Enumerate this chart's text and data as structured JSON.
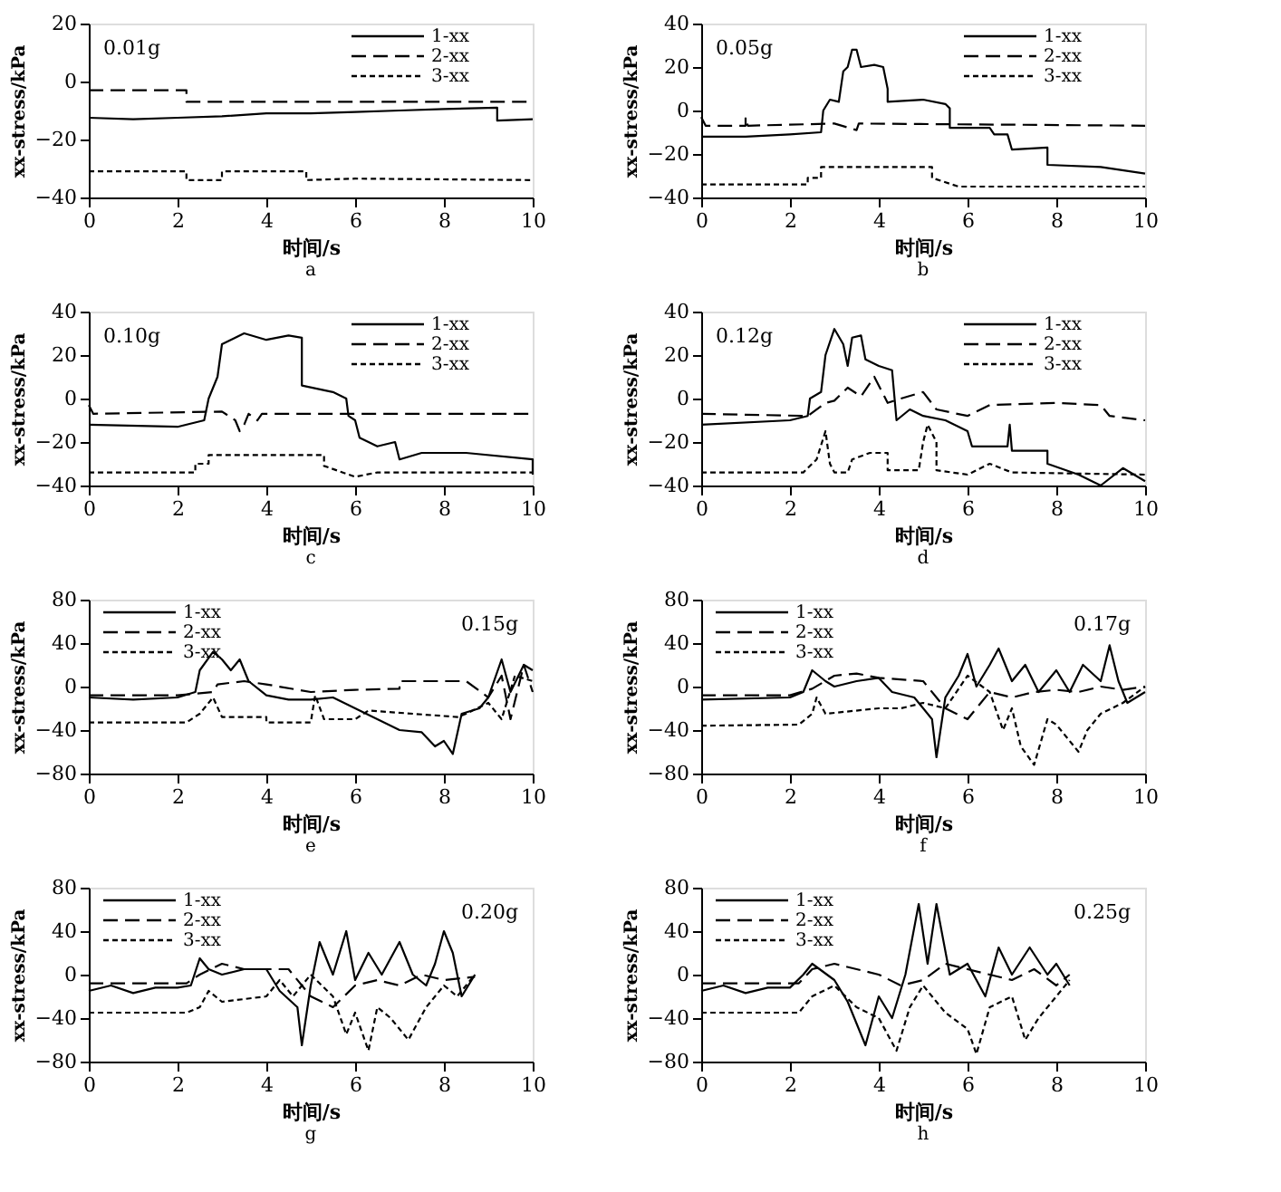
{
  "chart_data": [
    {
      "type": "line",
      "title": "a",
      "xlabel": "时间/s",
      "ylabel": "xx-stress/kPa",
      "annotations": [
        "0.01g"
      ],
      "xlim": [
        0,
        10
      ],
      "xticks": [
        0,
        2,
        4,
        6,
        8,
        10
      ],
      "ylim": [
        -40,
        20
      ],
      "yticks": [
        -40,
        -20,
        0,
        20
      ],
      "grid": false,
      "legend": "top right",
      "series": [
        {
          "name": "1-xx",
          "color": "#000000",
          "line_style": "solid",
          "x": [
            0,
            1,
            2,
            3,
            4,
            5,
            6,
            7,
            8,
            9.2,
            9.2,
            10
          ],
          "values": [
            -12.5,
            -13,
            -12.5,
            -12,
            -11,
            -11,
            -10.5,
            -10,
            -9.5,
            -9,
            -13.5,
            -13
          ]
        },
        {
          "name": "2-xx",
          "color": "#000000",
          "line_style": "dashed",
          "x": [
            0,
            2.2,
            2.2,
            10
          ],
          "values": [
            -3,
            -3,
            -7,
            -7
          ]
        },
        {
          "name": "3-xx",
          "color": "#000000",
          "line_style": "dotted",
          "x": [
            0,
            2.2,
            2.2,
            3,
            3,
            4.9,
            4.9,
            6,
            10
          ],
          "values": [
            -31,
            -31,
            -34,
            -34,
            -31,
            -31,
            -34,
            -33.5,
            -34
          ]
        }
      ]
    },
    {
      "type": "line",
      "title": "b",
      "xlabel": "时间/s",
      "ylabel": "xx-stress/kPa",
      "annotations": [
        "0.05g"
      ],
      "xlim": [
        0,
        10
      ],
      "xticks": [
        0,
        2,
        4,
        6,
        8,
        10
      ],
      "ylim": [
        -40,
        40
      ],
      "yticks": [
        -40,
        -20,
        0,
        20,
        40
      ],
      "grid": false,
      "legend": "top right",
      "series": [
        {
          "name": "1-xx",
          "color": "#000000",
          "line_style": "solid",
          "x": [
            0,
            1,
            2,
            2.7,
            2.75,
            2.9,
            3.1,
            3.2,
            3.3,
            3.4,
            3.5,
            3.6,
            3.9,
            4.1,
            4.2,
            4.2,
            5,
            5.5,
            5.6,
            5.6,
            6.5,
            6.6,
            6.9,
            7,
            7.8,
            7.8,
            9,
            10
          ],
          "values": [
            -12,
            -12,
            -11,
            -10,
            0,
            5,
            4,
            18,
            20,
            28,
            28,
            20,
            21,
            20,
            10,
            4,
            5,
            3,
            1,
            -8,
            -8,
            -11,
            -11,
            -18,
            -17,
            -25,
            -26,
            -29
          ]
        },
        {
          "name": "2-xx",
          "color": "#000000",
          "line_style": "dashed",
          "x": [
            0,
            0.1,
            1,
            1,
            1.05,
            3,
            3.5,
            3.55,
            10
          ],
          "values": [
            -3,
            -7,
            -7,
            -3,
            -7,
            -6,
            -9,
            -6,
            -7
          ]
        },
        {
          "name": "3-xx",
          "color": "#000000",
          "line_style": "dotted",
          "x": [
            0,
            2.4,
            2.4,
            2.7,
            2.7,
            5.2,
            5.2,
            5.8,
            10
          ],
          "values": [
            -34,
            -34,
            -31,
            -31,
            -26,
            -26,
            -31,
            -35,
            -35
          ]
        }
      ]
    },
    {
      "type": "line",
      "title": "c",
      "xlabel": "时间/s",
      "ylabel": "xx-stress/kPa",
      "annotations": [
        "0.10g"
      ],
      "xlim": [
        0,
        10
      ],
      "xticks": [
        0,
        2,
        4,
        6,
        8,
        10
      ],
      "ylim": [
        -40,
        40
      ],
      "yticks": [
        -40,
        -20,
        0,
        20,
        40
      ],
      "grid": false,
      "legend": "top right",
      "series": [
        {
          "name": "1-xx",
          "color": "#000000",
          "line_style": "solid",
          "x": [
            0,
            2,
            2.6,
            2.7,
            2.9,
            3,
            3.2,
            3.5,
            4,
            4.5,
            4.8,
            4.8,
            5.5,
            5.8,
            5.85,
            6,
            6.1,
            6.5,
            6.9,
            7,
            7.5,
            8.5,
            10,
            10
          ],
          "values": [
            -12,
            -13,
            -10,
            0,
            10,
            25,
            27,
            30,
            27,
            29,
            28,
            6,
            3,
            0,
            -8,
            -10,
            -18,
            -22,
            -20,
            -28,
            -25,
            -25,
            -28,
            -35
          ]
        },
        {
          "name": "2-xx",
          "color": "#000000",
          "line_style": "dashed",
          "x": [
            0,
            0.1,
            3,
            3.3,
            3.4,
            3.5,
            3.6,
            3.8,
            3.9,
            10
          ],
          "values": [
            -3,
            -7,
            -6,
            -10,
            -15,
            -12,
            -7,
            -10,
            -7,
            -7
          ]
        },
        {
          "name": "3-xx",
          "color": "#000000",
          "line_style": "dotted",
          "x": [
            0,
            2.4,
            2.4,
            2.7,
            2.7,
            5.3,
            5.3,
            6,
            6.5,
            10
          ],
          "values": [
            -34,
            -34,
            -30,
            -30,
            -26,
            -26,
            -31,
            -36,
            -34,
            -34
          ]
        }
      ]
    },
    {
      "type": "line",
      "title": "d",
      "xlabel": "时间/s",
      "ylabel": "xx-stress/kPa",
      "annotations": [
        "0.12g"
      ],
      "xlim": [
        0,
        10
      ],
      "xticks": [
        0,
        2,
        4,
        6,
        8,
        10
      ],
      "ylim": [
        -40,
        40
      ],
      "yticks": [
        -40,
        -20,
        0,
        20,
        40
      ],
      "grid": false,
      "legend": "top right",
      "series": [
        {
          "name": "1-xx",
          "color": "#000000",
          "line_style": "solid",
          "x": [
            0,
            2,
            2.4,
            2.45,
            2.7,
            2.8,
            3,
            3.2,
            3.3,
            3.4,
            3.6,
            3.7,
            4,
            4.3,
            4.4,
            4.7,
            5,
            5.5,
            6,
            6.1,
            6.5,
            6.9,
            6.95,
            7,
            7.8,
            7.8,
            8.5,
            9,
            9.5,
            10
          ],
          "values": [
            -12,
            -10,
            -8,
            0,
            3,
            20,
            32,
            25,
            15,
            28,
            29,
            18,
            15,
            13,
            -10,
            -5,
            -8,
            -10,
            -15,
            -22,
            -22,
            -22,
            -12,
            -24,
            -24,
            -30,
            -35,
            -40,
            -32,
            -38
          ]
        },
        {
          "name": "2-xx",
          "color": "#000000",
          "line_style": "dashed",
          "x": [
            0,
            2.4,
            2.8,
            3,
            3.3,
            3.6,
            3.9,
            4.2,
            4.5,
            5,
            5.3,
            6,
            6.5,
            8,
            9,
            9.2,
            10
          ],
          "values": [
            -7,
            -8,
            -2,
            -1,
            5,
            1,
            10,
            -2,
            0,
            3,
            -5,
            -8,
            -3,
            -2,
            -3,
            -8,
            -10
          ]
        },
        {
          "name": "3-xx",
          "color": "#000000",
          "line_style": "dotted",
          "x": [
            0,
            2.3,
            2.6,
            2.8,
            2.9,
            3,
            3.3,
            3.4,
            3.8,
            4.2,
            4.2,
            4.9,
            5,
            5.1,
            5.3,
            5.3,
            6,
            6.5,
            7,
            10
          ],
          "values": [
            -34,
            -34,
            -28,
            -15,
            -30,
            -34,
            -34,
            -28,
            -25,
            -25,
            -33,
            -33,
            -20,
            -12,
            -20,
            -33,
            -35,
            -30,
            -34,
            -35
          ]
        }
      ]
    },
    {
      "type": "line",
      "title": "e",
      "xlabel": "时间/s",
      "ylabel": "xx-stress/kPa",
      "annotations": [
        "0.15g"
      ],
      "xlim": [
        0,
        10
      ],
      "xticks": [
        0,
        2,
        4,
        6,
        8,
        10
      ],
      "ylim": [
        -80,
        80
      ],
      "yticks": [
        -80,
        -40,
        0,
        40,
        80
      ],
      "grid": false,
      "legend": "top left",
      "series": [
        {
          "name": "1-xx",
          "color": "#000000",
          "line_style": "solid",
          "x": [
            0,
            1,
            2,
            2.4,
            2.5,
            2.8,
            3,
            3.2,
            3.4,
            3.6,
            4,
            4.5,
            5,
            5.5,
            6,
            6.5,
            7,
            7.5,
            7.8,
            8,
            8.2,
            8.4,
            8.8,
            9,
            9.3,
            9.5,
            9.8,
            10
          ],
          "values": [
            -10,
            -12,
            -10,
            -5,
            15,
            32,
            25,
            15,
            25,
            5,
            -8,
            -12,
            -12,
            -10,
            -20,
            -30,
            -40,
            -42,
            -55,
            -50,
            -62,
            -25,
            -20,
            -10,
            25,
            -5,
            20,
            15
          ]
        },
        {
          "name": "2-xx",
          "color": "#000000",
          "line_style": "dashed",
          "x": [
            0,
            2,
            2.8,
            2.9,
            3.5,
            4,
            5,
            6,
            7,
            7,
            8,
            8.5,
            9,
            9.3,
            9.5,
            9.8,
            10
          ],
          "values": [
            -8,
            -8,
            -5,
            2,
            5,
            2,
            -5,
            -3,
            -2,
            5,
            5,
            5,
            -10,
            10,
            -30,
            20,
            -5
          ]
        },
        {
          "name": "3-xx",
          "color": "#000000",
          "line_style": "dotted",
          "x": [
            0,
            2.2,
            2.5,
            2.8,
            3,
            4,
            4,
            5,
            5.1,
            5.3,
            6,
            6.3,
            8.3,
            8.5,
            9,
            9.3,
            9.6,
            10
          ],
          "values": [
            -33,
            -33,
            -25,
            -10,
            -28,
            -28,
            -33,
            -33,
            -8,
            -30,
            -30,
            -22,
            -28,
            -25,
            -15,
            -30,
            10,
            5
          ]
        }
      ]
    },
    {
      "type": "line",
      "title": "f",
      "xlabel": "时间/s",
      "ylabel": "xx-stress/kPa",
      "annotations": [
        "0.17g"
      ],
      "xlim": [
        0,
        10
      ],
      "xticks": [
        0,
        2,
        4,
        6,
        8,
        10
      ],
      "ylim": [
        -80,
        80
      ],
      "yticks": [
        -80,
        -40,
        0,
        40,
        80
      ],
      "grid": false,
      "legend": "top left",
      "series": [
        {
          "name": "1-xx",
          "color": "#000000",
          "line_style": "solid",
          "x": [
            0,
            2,
            2.3,
            2.5,
            2.8,
            3,
            3.5,
            4,
            4.3,
            4.8,
            5.2,
            5.3,
            5.5,
            5.8,
            6,
            6.2,
            6.5,
            6.7,
            7,
            7.3,
            7.6,
            8,
            8.3,
            8.6,
            9,
            9.2,
            9.4,
            9.6,
            10
          ],
          "values": [
            -12,
            -10,
            -5,
            15,
            5,
            0,
            5,
            8,
            -5,
            -10,
            -30,
            -65,
            -10,
            10,
            30,
            0,
            20,
            35,
            5,
            20,
            -5,
            15,
            -5,
            20,
            5,
            38,
            5,
            -15,
            -5
          ]
        },
        {
          "name": "2-xx",
          "color": "#000000",
          "line_style": "dashed",
          "x": [
            0,
            2,
            2.5,
            3,
            3.5,
            4,
            5,
            5.5,
            6,
            6.5,
            7,
            7.5,
            8,
            8.5,
            9,
            9.5,
            10
          ],
          "values": [
            -8,
            -8,
            -2,
            10,
            12,
            8,
            5,
            -20,
            -30,
            -5,
            -10,
            -5,
            -3,
            -5,
            0,
            -3,
            0
          ]
        },
        {
          "name": "3-xx",
          "color": "#000000",
          "line_style": "dotted",
          "x": [
            0,
            2.2,
            2.5,
            2.6,
            2.8,
            4,
            4.5,
            5,
            5.5,
            6,
            6.5,
            6.8,
            7,
            7.2,
            7.5,
            7.8,
            8,
            8.5,
            8.7,
            9,
            9.5,
            10
          ],
          "values": [
            -36,
            -35,
            -25,
            -10,
            -25,
            -20,
            -20,
            -15,
            -20,
            10,
            -5,
            -40,
            -20,
            -55,
            -72,
            -30,
            -35,
            -60,
            -40,
            -25,
            -15,
            0
          ]
        }
      ]
    },
    {
      "type": "line",
      "title": "g",
      "xlabel": "时间/s",
      "ylabel": "xx-stress/kPa",
      "annotations": [
        "0.20g"
      ],
      "xlim": [
        0,
        10
      ],
      "xticks": [
        0,
        2,
        4,
        6,
        8,
        10
      ],
      "ylim": [
        -80,
        80
      ],
      "yticks": [
        -80,
        -40,
        0,
        40,
        80
      ],
      "grid": false,
      "legend": "top left",
      "series": [
        {
          "name": "1-xx",
          "color": "#000000",
          "line_style": "solid",
          "x": [
            0,
            0.5,
            1,
            1.5,
            2,
            2.3,
            2.5,
            2.7,
            3,
            3.5,
            4,
            4.3,
            4.7,
            4.8,
            5,
            5.2,
            5.5,
            5.8,
            6,
            6.3,
            6.6,
            7,
            7.3,
            7.6,
            7.8,
            8,
            8.2,
            8.4,
            8.7
          ],
          "values": [
            -15,
            -10,
            -17,
            -12,
            -12,
            -10,
            15,
            5,
            0,
            5,
            5,
            -15,
            -30,
            -65,
            -10,
            30,
            0,
            40,
            -5,
            20,
            0,
            30,
            0,
            -10,
            10,
            40,
            20,
            -20,
            0
          ]
        },
        {
          "name": "2-xx",
          "color": "#000000",
          "line_style": "dashed",
          "x": [
            0,
            2.2,
            2.5,
            3,
            3.5,
            4.5,
            5,
            5.5,
            6,
            6.5,
            7,
            7.5,
            8,
            8.7
          ],
          "values": [
            -8,
            -8,
            0,
            10,
            5,
            5,
            -20,
            -30,
            -10,
            -5,
            -10,
            0,
            -5,
            -2
          ]
        },
        {
          "name": "3-xx",
          "color": "#000000",
          "line_style": "dotted",
          "x": [
            0,
            2.2,
            2.5,
            2.7,
            3,
            4,
            4.3,
            4.6,
            5,
            5.5,
            5.8,
            6,
            6.3,
            6.5,
            6.8,
            7.2,
            7.6,
            8,
            8.3,
            8.7
          ],
          "values": [
            -35,
            -35,
            -30,
            -15,
            -25,
            -20,
            -5,
            -20,
            0,
            -20,
            -55,
            -35,
            -70,
            -30,
            -40,
            -60,
            -30,
            -10,
            -20,
            0
          ]
        }
      ]
    },
    {
      "type": "line",
      "title": "h",
      "xlabel": "时间/s",
      "ylabel": "xx-stress/kPa",
      "annotations": [
        "0.25g"
      ],
      "xlim": [
        0,
        10
      ],
      "xticks": [
        0,
        2,
        4,
        6,
        8,
        10
      ],
      "ylim": [
        -80,
        80
      ],
      "yticks": [
        -80,
        -40,
        0,
        40,
        80
      ],
      "grid": false,
      "legend": "top left",
      "series": [
        {
          "name": "1-xx",
          "color": "#000000",
          "line_style": "solid",
          "x": [
            0,
            0.5,
            1,
            1.5,
            2,
            2.3,
            2.5,
            3,
            3.3,
            3.7,
            4,
            4.3,
            4.6,
            4.9,
            5.1,
            5.3,
            5.6,
            6,
            6.4,
            6.7,
            7,
            7.4,
            7.8,
            8,
            8.3
          ],
          "values": [
            -15,
            -10,
            -17,
            -12,
            -12,
            0,
            10,
            -5,
            -25,
            -65,
            -20,
            -40,
            0,
            65,
            10,
            65,
            0,
            10,
            -20,
            25,
            0,
            25,
            0,
            10,
            -10
          ]
        },
        {
          "name": "2-xx",
          "color": "#000000",
          "line_style": "dashed",
          "x": [
            0,
            2.2,
            2.5,
            3,
            3.5,
            4,
            4.5,
            5,
            5.5,
            6,
            6.5,
            7,
            7.5,
            8,
            8.3
          ],
          "values": [
            -8,
            -8,
            5,
            10,
            5,
            0,
            -10,
            -5,
            10,
            5,
            0,
            -5,
            5,
            -10,
            0
          ]
        },
        {
          "name": "3-xx",
          "color": "#000000",
          "line_style": "dotted",
          "x": [
            0,
            2.2,
            2.5,
            3,
            3.5,
            4,
            4.4,
            4.7,
            5,
            5.5,
            6,
            6.2,
            6.5,
            7,
            7.3,
            7.6,
            8,
            8.3
          ],
          "values": [
            -35,
            -35,
            -20,
            -10,
            -30,
            -40,
            -70,
            -30,
            -10,
            -35,
            -50,
            -73,
            -30,
            -20,
            -60,
            -40,
            -20,
            -5
          ]
        }
      ]
    }
  ]
}
